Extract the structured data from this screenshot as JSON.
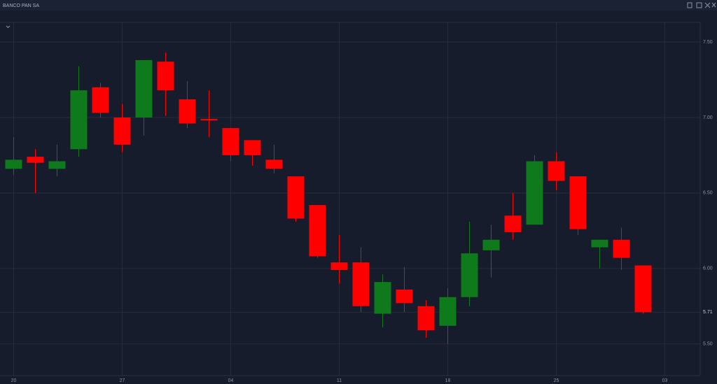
{
  "chart_data": {
    "type": "candlestick",
    "title": "BANCO PAN SA",
    "categories": [
      "20",
      null,
      null,
      null,
      null,
      "27",
      null,
      null,
      null,
      null,
      "04",
      null,
      null,
      null,
      null,
      "11",
      null,
      null,
      null,
      null,
      "18",
      null,
      null,
      null,
      null,
      "25",
      null,
      null,
      null,
      null,
      "03"
    ],
    "open": [
      6.66,
      6.74,
      6.66,
      6.79,
      7.2,
      7.0,
      7.0,
      7.37,
      7.12,
      6.99,
      6.93,
      6.85,
      6.72,
      6.61,
      6.42,
      6.04,
      6.04,
      5.7,
      5.86,
      5.75,
      5.62,
      5.81,
      6.12,
      6.35,
      6.29,
      6.71,
      6.61,
      6.14,
      6.19,
      6.02,
      null
    ],
    "high": [
      6.87,
      6.79,
      6.82,
      7.34,
      7.23,
      7.09,
      7.38,
      7.43,
      7.24,
      7.18,
      6.93,
      6.85,
      6.82,
      6.61,
      6.42,
      6.22,
      6.14,
      5.96,
      6.01,
      5.79,
      5.87,
      6.31,
      6.29,
      6.5,
      6.75,
      6.77,
      6.61,
      6.19,
      6.27,
      6.02,
      null
    ],
    "low": [
      6.62,
      6.5,
      6.61,
      6.74,
      7.0,
      6.77,
      6.88,
      7.01,
      6.93,
      6.87,
      6.71,
      6.68,
      6.63,
      6.31,
      6.07,
      5.9,
      5.71,
      5.61,
      5.71,
      5.54,
      5.5,
      5.75,
      5.94,
      6.19,
      6.29,
      6.52,
      6.22,
      6.0,
      5.99,
      5.7,
      null
    ],
    "close": [
      6.72,
      6.7,
      6.71,
      7.18,
      7.03,
      6.82,
      7.38,
      7.18,
      6.96,
      6.98,
      6.75,
      6.75,
      6.66,
      6.33,
      6.08,
      5.99,
      5.75,
      5.91,
      5.77,
      5.59,
      5.81,
      6.1,
      6.19,
      6.24,
      6.71,
      6.58,
      6.26,
      6.19,
      6.07,
      5.71,
      null
    ],
    "up_color": "#0f7a1b",
    "down_color": "#ff0000",
    "ylim": [
      5.29,
      7.63
    ],
    "yticks": [
      {
        "value": 5.5,
        "label": "5.50"
      },
      {
        "value": 6,
        "label": "6.00"
      },
      {
        "value": 6.5,
        "label": "6.50"
      },
      {
        "value": 7,
        "label": "7.00"
      },
      {
        "value": 7.5,
        "label": "7.50"
      }
    ],
    "last_price": 5.71,
    "grid": true
  }
}
